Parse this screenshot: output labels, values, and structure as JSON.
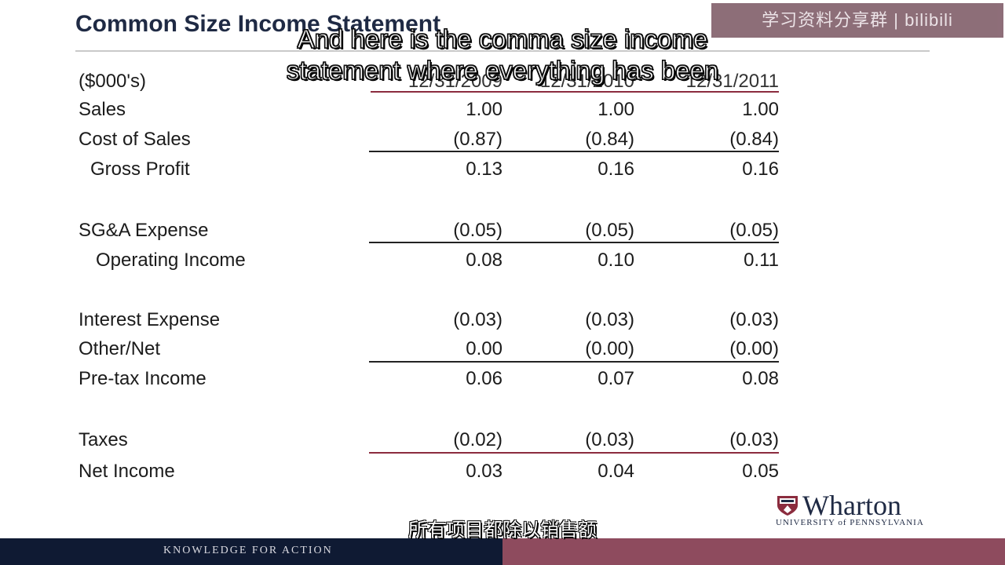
{
  "watermark": "学习资料分享群 | bilibili",
  "slide_title": "Common Size Income Statement",
  "captions": {
    "en_line1": "And here is the comma size income",
    "en_line2": "statement where everything has been",
    "zh": "所有项目都除以销售额"
  },
  "table": {
    "unit_label": "($000's)",
    "columns": [
      "12/31/2009",
      "12/31/2010",
      "12/31/2011"
    ],
    "rows": [
      {
        "label": "Sales",
        "values": [
          "1.00",
          "1.00",
          "1.00"
        ]
      },
      {
        "label": "Cost of Sales",
        "values": [
          "(0.87)",
          "(0.84)",
          "(0.84)"
        ]
      },
      {
        "label": "Gross Profit",
        "values": [
          "0.13",
          "0.16",
          "0.16"
        ]
      },
      {
        "label": "SG&A Expense",
        "values": [
          "(0.05)",
          "(0.05)",
          "(0.05)"
        ]
      },
      {
        "label": "Operating Income",
        "values": [
          "0.08",
          "0.10",
          "0.11"
        ]
      },
      {
        "label": "Interest Expense",
        "values": [
          "(0.03)",
          "(0.03)",
          "(0.03)"
        ]
      },
      {
        "label": "Other/Net",
        "values": [
          "0.00",
          "(0.00)",
          "(0.00)"
        ]
      },
      {
        "label": "Pre-tax Income",
        "values": [
          "0.06",
          "0.07",
          "0.08"
        ]
      },
      {
        "label": "Taxes",
        "values": [
          "(0.02)",
          "(0.03)",
          "(0.03)"
        ]
      },
      {
        "label": "Net Income",
        "values": [
          "0.03",
          "0.04",
          "0.05"
        ]
      }
    ]
  },
  "logo": {
    "name": "Wharton",
    "subtitle": "UNIVERSITY of PENNSYLVANIA"
  },
  "footer": {
    "tagline": "KNOWLEDGE FOR ACTION"
  },
  "colors": {
    "navy": "#0f1a33",
    "maroon": "#8e4b5e"
  }
}
